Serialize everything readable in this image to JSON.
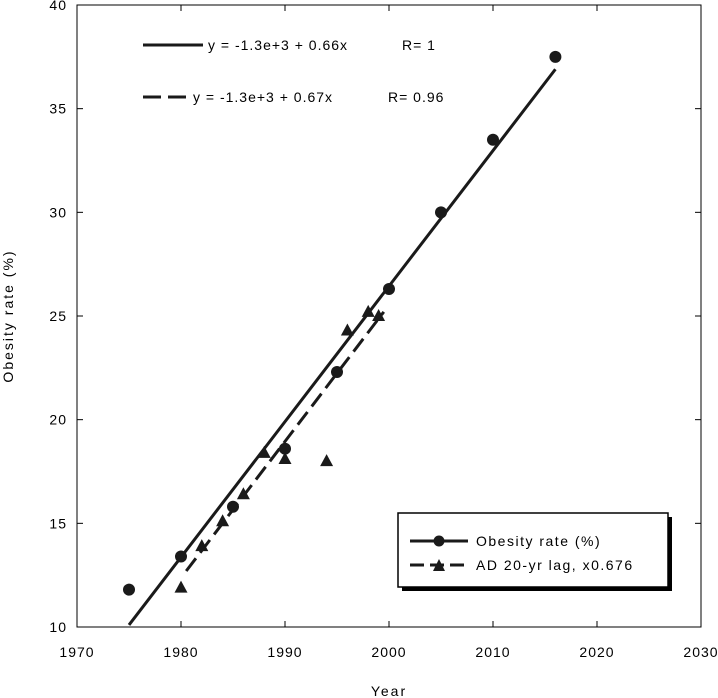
{
  "chart_data": {
    "type": "scatter",
    "xlabel": "Year",
    "ylabel": "Obesity rate (%)",
    "xlim": [
      1970,
      2030
    ],
    "ylim": [
      10,
      40
    ],
    "xticks": [
      1970,
      1980,
      1990,
      2000,
      2010,
      2020,
      2030
    ],
    "yticks": [
      10,
      15,
      20,
      25,
      30,
      35,
      40
    ],
    "grid": false,
    "legend_position": "bottom-right",
    "series": [
      {
        "name": "Obesity rate (%)",
        "marker": "circle",
        "line_style": "solid",
        "color": "#1a1a1a",
        "x": [
          1975,
          1980,
          1985,
          1990,
          1995,
          2000,
          2005,
          2010,
          2016
        ],
        "y": [
          11.8,
          13.4,
          15.8,
          18.6,
          22.3,
          26.3,
          30.0,
          33.5,
          37.5
        ],
        "fit_line": {
          "x": [
            1975,
            2016
          ],
          "y": [
            10.1,
            36.9
          ]
        },
        "fit_label": "y = -1.3e+3 + 0.66x",
        "r_label": "R= 1"
      },
      {
        "name": "AD 20-yr lag, x0.676",
        "marker": "triangle",
        "line_style": "dashed",
        "color": "#1a1a1a",
        "x": [
          1980,
          1982,
          1984,
          1986,
          1988,
          1990,
          1994,
          1996,
          1998,
          1999
        ],
        "y": [
          11.9,
          13.9,
          15.1,
          16.4,
          18.4,
          18.1,
          18.0,
          24.3,
          25.2,
          25.0
        ],
        "fit_line": {
          "x": [
            1980.5,
            1999.5
          ],
          "y": [
            12.7,
            25.2
          ]
        },
        "fit_label": "y = -1.3e+3 + 0.67x",
        "r_label": "R= 0.96"
      }
    ]
  }
}
